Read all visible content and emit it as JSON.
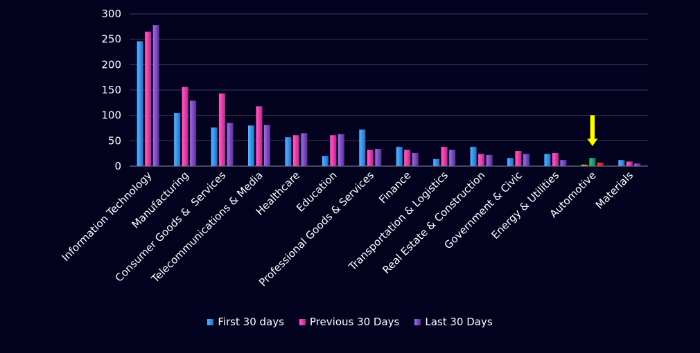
{
  "chart_data": {
    "type": "bar",
    "title": "",
    "xlabel": "",
    "ylabel": "",
    "ylim": [
      0,
      300
    ],
    "yticks": [
      "0",
      "50",
      "100",
      "150",
      "200",
      "250",
      "300"
    ],
    "grid": true,
    "legend_position": "bottom",
    "categories": [
      "Information Technology",
      "Manufacturing",
      "Consumer Goods &  Services",
      "Telecommunications & Media",
      "Healthcare",
      "Education",
      "Professional Goods & Services",
      "Finance",
      "Transportation & Logistics",
      "Real Estate & Construction",
      "Government & Civic",
      "Energy & Utilities",
      "Automotive",
      "Materials"
    ],
    "series": [
      {
        "name": "First 30 days",
        "color": "#2f8fe0",
        "values": [
          246,
          105,
          76,
          80,
          57,
          20,
          72,
          38,
          14,
          38,
          16,
          24,
          3,
          12
        ]
      },
      {
        "name": "Previous 30 Days",
        "color": "#e23aa8",
        "values": [
          265,
          156,
          143,
          118,
          61,
          61,
          32,
          32,
          38,
          24,
          30,
          26,
          16,
          9
        ]
      },
      {
        "name": "Last 30 Days",
        "color": "#7b3fc0",
        "values": [
          278,
          129,
          85,
          81,
          65,
          63,
          34,
          26,
          32,
          22,
          24,
          12,
          7,
          5
        ]
      }
    ],
    "highlight": {
      "category": "Automotive",
      "bar_colors": [
        "#9aa82a",
        "#1f9a6a",
        "#d42a30"
      ],
      "arrow_color": "#ffff00"
    }
  }
}
